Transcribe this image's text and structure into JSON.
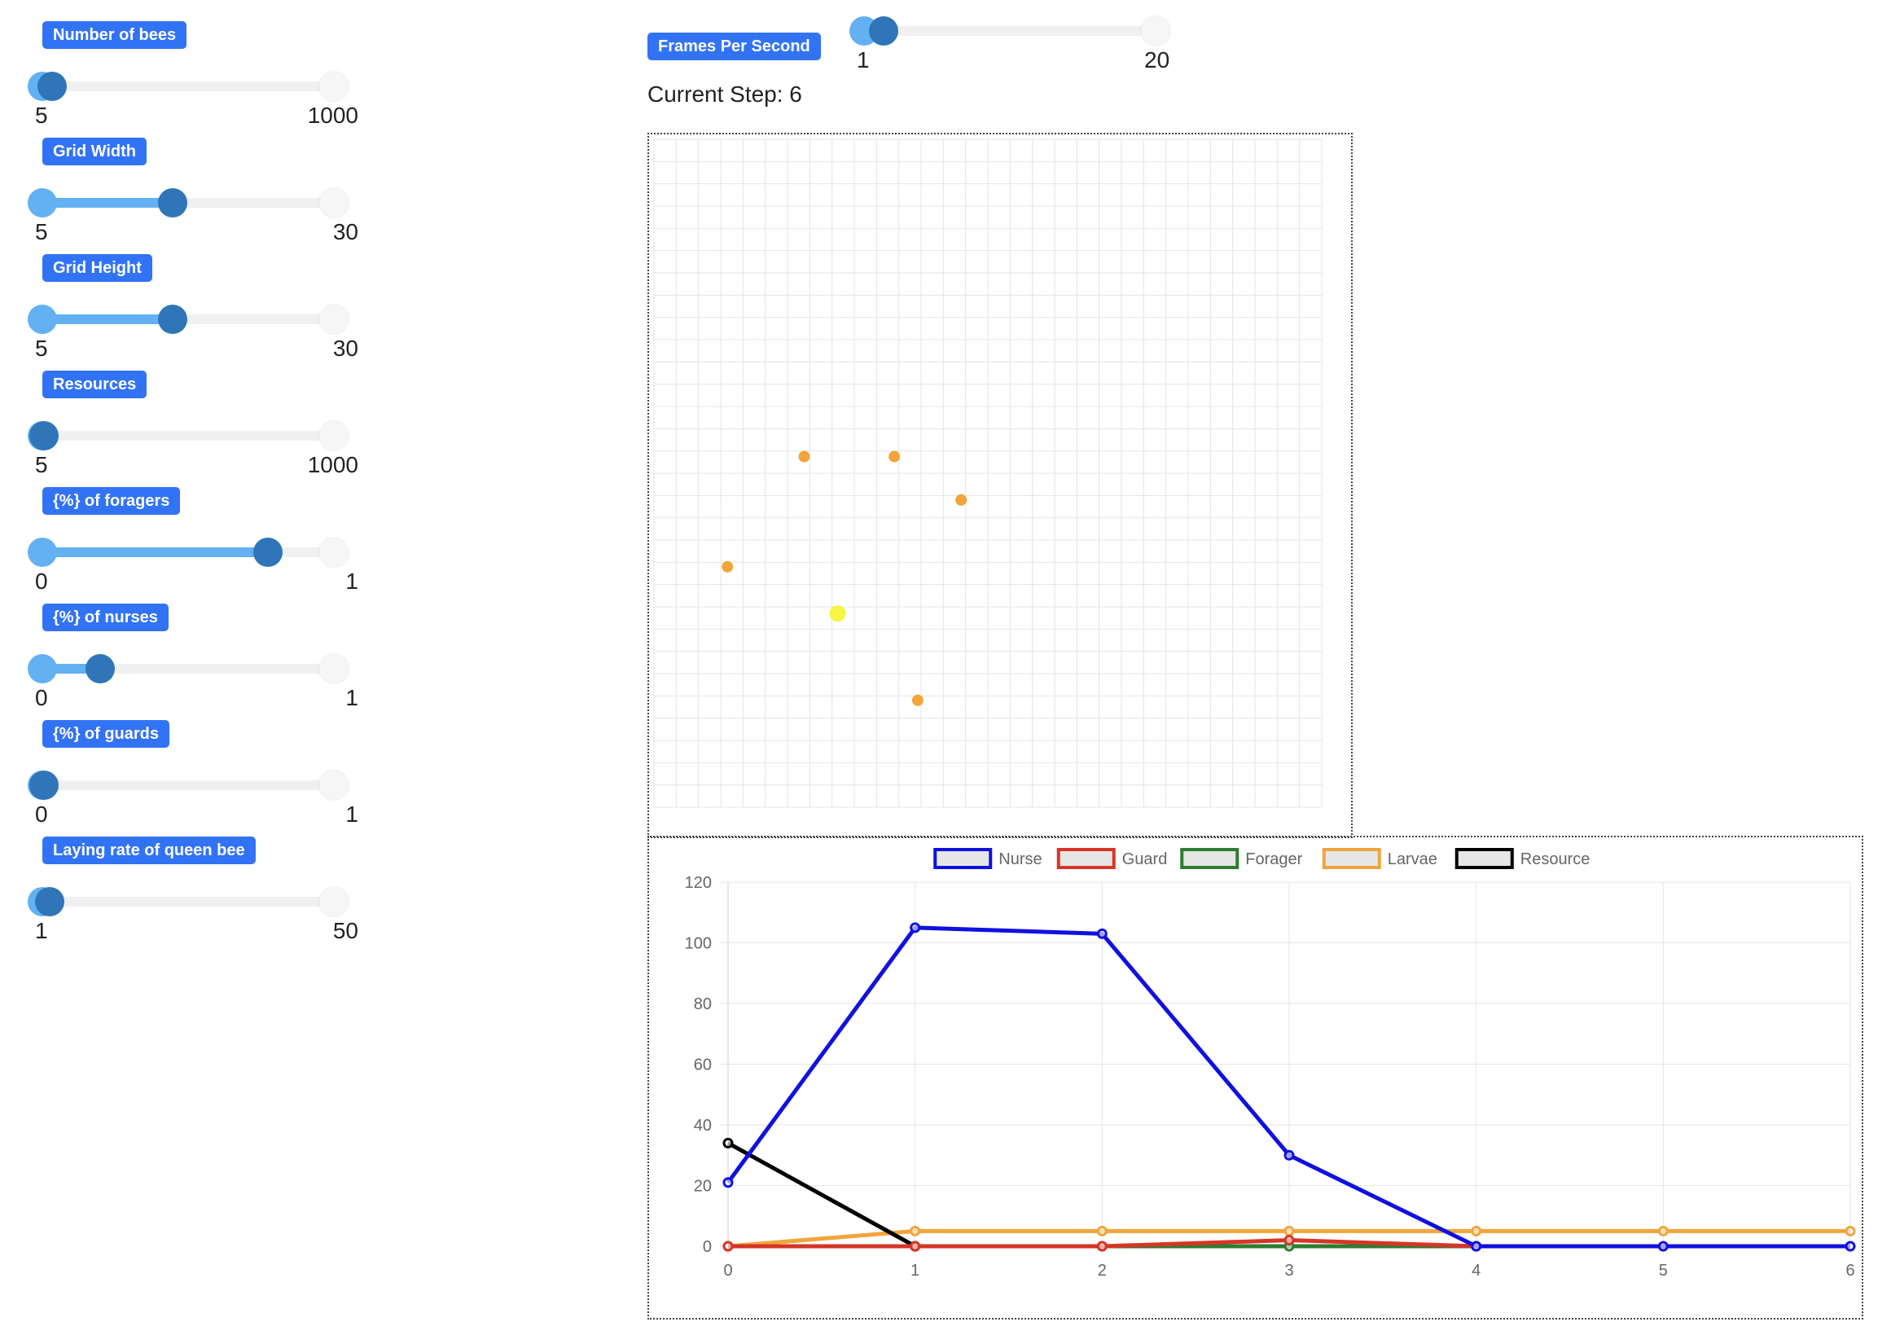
{
  "controls": [
    {
      "label": "Number of bees",
      "min": "5",
      "max": "1000",
      "value_fraction": 0.03
    },
    {
      "label": "Grid Width",
      "min": "5",
      "max": "30",
      "value_fraction": 0.46
    },
    {
      "label": "Grid Height",
      "min": "5",
      "max": "30",
      "value_fraction": 0.46
    },
    {
      "label": "Resources",
      "min": "5",
      "max": "1000",
      "value_fraction": 0.0
    },
    {
      "label": "{%} of foragers",
      "min": "0",
      "max": "1",
      "value_fraction": 0.8
    },
    {
      "label": "{%} of nurses",
      "min": "0",
      "max": "1",
      "value_fraction": 0.2
    },
    {
      "label": "{%} of guards",
      "min": "0",
      "max": "1",
      "value_fraction": 0.0
    },
    {
      "label": "Laying rate of queen bee",
      "min": "1",
      "max": "50",
      "value_fraction": 0.02
    }
  ],
  "fps": {
    "label": "Frames Per Second",
    "min": "1",
    "max": "20",
    "value_fraction": 0.0
  },
  "status": {
    "current_step": "Current Step: 6"
  },
  "grid": {
    "columns": 20,
    "rows": 20,
    "cell_color": "#e4e4e4",
    "agents": [
      {
        "col": 4.5,
        "row": 9.5,
        "color": "#f3a43b",
        "size": "small"
      },
      {
        "col": 7.2,
        "row": 9.5,
        "color": "#f3a43b",
        "size": "small"
      },
      {
        "col": 9.2,
        "row": 10.8,
        "color": "#f3a43b",
        "size": "small"
      },
      {
        "col": 2.2,
        "row": 12.8,
        "color": "#f3a43b",
        "size": "small"
      },
      {
        "col": 5.5,
        "row": 14.2,
        "color": "#f5f542",
        "size": "large"
      },
      {
        "col": 7.9,
        "row": 16.8,
        "color": "#f3a43b",
        "size": "small"
      }
    ]
  },
  "chart_data": {
    "type": "line",
    "x": [
      0,
      1,
      2,
      3,
      4,
      5,
      6
    ],
    "ylim": [
      0,
      120
    ],
    "yticks": [
      0,
      20,
      40,
      60,
      80,
      100,
      120
    ],
    "xticks": [
      0,
      1,
      2,
      3,
      4,
      5,
      6
    ],
    "grid": true,
    "legend_position": "top",
    "series": [
      {
        "name": "Larvae",
        "color": "#f0a53c",
        "values": [
          0,
          5,
          5,
          5,
          5,
          5,
          5
        ]
      },
      {
        "name": "Forager",
        "color": "#2e7d32",
        "values": [
          0,
          0,
          0,
          0,
          0,
          null,
          null
        ]
      },
      {
        "name": "Resource",
        "color": "#000000",
        "values": [
          34,
          0,
          null,
          null,
          null,
          null,
          null
        ]
      },
      {
        "name": "Guard",
        "color": "#d73527",
        "values": [
          0,
          0,
          0,
          2,
          0,
          null,
          null
        ]
      },
      {
        "name": "Nurse",
        "color": "#1010e0",
        "values": [
          21,
          105,
          103,
          30,
          0,
          0,
          0
        ]
      }
    ],
    "legend_order": [
      "Nurse",
      "Guard",
      "Forager",
      "Larvae",
      "Resource"
    ]
  }
}
